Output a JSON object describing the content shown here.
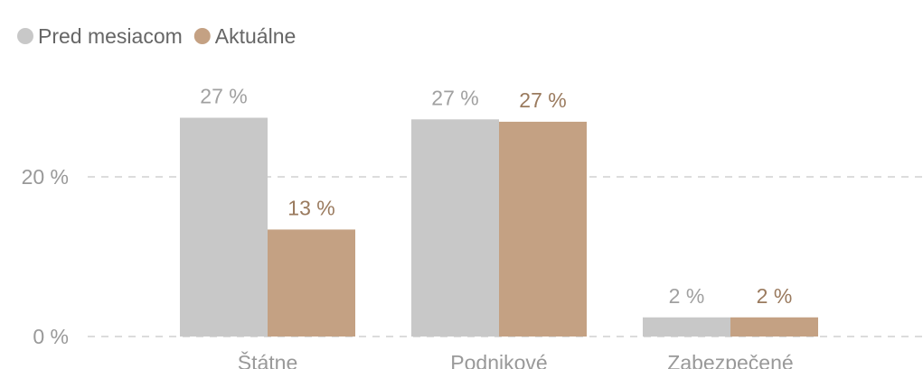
{
  "chart_data": {
    "type": "bar",
    "categories": [
      "Štátne",
      "Podnikové",
      "Zabezpečené"
    ],
    "series": [
      {
        "name": "Pred mesiacom",
        "color": "#c8c8c8",
        "values": [
          27.4,
          27.2,
          2.4
        ],
        "value_labels": [
          "27 %",
          "27 %",
          "2 %"
        ]
      },
      {
        "name": "Aktuálne",
        "color": "#c4a183",
        "values": [
          13.4,
          26.9,
          2.4
        ],
        "value_labels": [
          "13 %",
          "27 %",
          "2 %"
        ]
      }
    ],
    "ylim": [
      0,
      30
    ],
    "yticks": [
      {
        "value": 0,
        "label": "0 %"
      },
      {
        "value": 20,
        "label": "20 %"
      }
    ],
    "grid": true,
    "legend": "top-left"
  }
}
